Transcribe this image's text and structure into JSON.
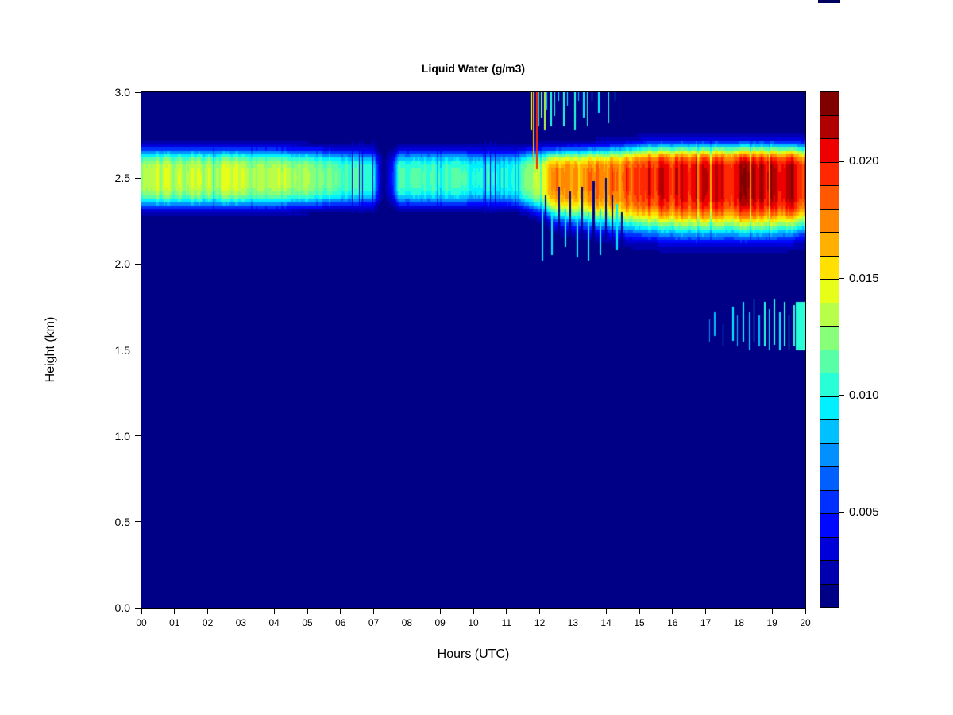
{
  "chart_data": {
    "type": "heatmap",
    "title": "Liquid Water (g/m3)",
    "xlabel": "Hours (UTC)",
    "ylabel": "Height (km)",
    "x_range": [
      0,
      20
    ],
    "y_range": [
      0.0,
      3.0
    ],
    "x_tick_labels": [
      "00",
      "01",
      "02",
      "03",
      "04",
      "05",
      "06",
      "07",
      "08",
      "09",
      "10",
      "11",
      "12",
      "13",
      "14",
      "15",
      "16",
      "17",
      "18",
      "19",
      "20"
    ],
    "y_tick_values": [
      0.0,
      0.5,
      1.0,
      1.5,
      2.0,
      2.5,
      3.0
    ],
    "y_tick_labels": [
      "0.0",
      "0.5",
      "1.0",
      "1.5",
      "2.0",
      "2.5",
      "3.0"
    ],
    "grid": false,
    "legend_position": "right",
    "background_value": 0.0015,
    "colorbar": {
      "min": 0.001,
      "max": 0.023,
      "step": 0.001,
      "tick_values": [
        0.005,
        0.01,
        0.015,
        0.02
      ],
      "tick_labels": [
        "0.005",
        "0.010",
        "0.015",
        "0.020"
      ],
      "colors": [
        "#000087",
        "#0000AE",
        "#0000D8",
        "#0008FF",
        "#0030FF",
        "#0060FF",
        "#0090FF",
        "#00C0FF",
        "#00F0FF",
        "#28FFD7",
        "#58FFA7",
        "#87FF78",
        "#B7FF48",
        "#E7FF18",
        "#FFE000",
        "#FFB000",
        "#FF8800",
        "#FF5800",
        "#FF2800",
        "#EE0000",
        "#B00000",
        "#800000"
      ]
    },
    "band": {
      "center_km": 2.5,
      "profile": [
        {
          "h": 0.0,
          "peak": 0.0138,
          "wu": 0.165,
          "wd": 0.165
        },
        {
          "h": 2.0,
          "peak": 0.0133,
          "wu": 0.165,
          "wd": 0.165
        },
        {
          "h": 3.0,
          "peak": 0.0136,
          "wu": 0.165,
          "wd": 0.165
        },
        {
          "h": 4.5,
          "peak": 0.013,
          "wu": 0.16,
          "wd": 0.16
        },
        {
          "h": 5.5,
          "peak": 0.012,
          "wu": 0.155,
          "wd": 0.155
        },
        {
          "h": 6.5,
          "peak": 0.0112,
          "wu": 0.15,
          "wd": 0.15
        },
        {
          "h": 7.0,
          "peak": 0.0105,
          "wu": 0.15,
          "wd": 0.15
        },
        {
          "h": 7.15,
          "peak": 0.0045,
          "wu": 0.14,
          "wd": 0.14
        },
        {
          "h": 7.3,
          "peak": 0.0016,
          "wu": 0.13,
          "wd": 0.13
        },
        {
          "h": 7.55,
          "peak": 0.0045,
          "wu": 0.14,
          "wd": 0.14
        },
        {
          "h": 7.75,
          "peak": 0.0108,
          "wu": 0.15,
          "wd": 0.15
        },
        {
          "h": 9.0,
          "peak": 0.0112,
          "wu": 0.155,
          "wd": 0.155
        },
        {
          "h": 10.2,
          "peak": 0.0103,
          "wu": 0.15,
          "wd": 0.15
        },
        {
          "h": 11.0,
          "peak": 0.01,
          "wu": 0.15,
          "wd": 0.15
        },
        {
          "h": 11.6,
          "peak": 0.0115,
          "wu": 0.155,
          "wd": 0.17
        },
        {
          "h": 12.1,
          "peak": 0.015,
          "wu": 0.16,
          "wd": 0.2
        },
        {
          "h": 12.5,
          "peak": 0.0168,
          "wu": 0.16,
          "wd": 0.24
        },
        {
          "h": 13.2,
          "peak": 0.017,
          "wu": 0.165,
          "wd": 0.26
        },
        {
          "h": 14.0,
          "peak": 0.0178,
          "wu": 0.17,
          "wd": 0.28
        },
        {
          "h": 14.8,
          "peak": 0.0188,
          "wu": 0.18,
          "wd": 0.3
        },
        {
          "h": 15.5,
          "peak": 0.0198,
          "wu": 0.19,
          "wd": 0.31
        },
        {
          "h": 16.2,
          "peak": 0.0206,
          "wu": 0.19,
          "wd": 0.32
        },
        {
          "h": 17.0,
          "peak": 0.0209,
          "wu": 0.19,
          "wd": 0.32
        },
        {
          "h": 18.0,
          "peak": 0.0211,
          "wu": 0.19,
          "wd": 0.32
        },
        {
          "h": 19.0,
          "peak": 0.0209,
          "wu": 0.19,
          "wd": 0.32
        },
        {
          "h": 20.0,
          "peak": 0.0206,
          "wu": 0.185,
          "wd": 0.3
        }
      ]
    },
    "upper_streaks": [
      {
        "h": 11.72,
        "v": 0.014,
        "kb": 2.78,
        "w": 2
      },
      {
        "h": 11.8,
        "v": 0.016,
        "kb": 2.6,
        "w": 2
      },
      {
        "h": 11.88,
        "v": 0.019,
        "kb": 2.55,
        "w": 2
      },
      {
        "h": 11.97,
        "v": 0.01,
        "kb": 2.8,
        "w": 1
      },
      {
        "h": 12.04,
        "v": 0.012,
        "kb": 2.85,
        "w": 2
      },
      {
        "h": 12.12,
        "v": 0.013,
        "kb": 2.78,
        "w": 2
      },
      {
        "h": 12.2,
        "v": 0.009,
        "kb": 2.9,
        "w": 1
      },
      {
        "h": 12.31,
        "v": 0.011,
        "kb": 2.8,
        "w": 2
      },
      {
        "h": 12.45,
        "v": 0.01,
        "kb": 2.86,
        "w": 1
      },
      {
        "h": 12.56,
        "v": 0.009,
        "kb": 2.95,
        "w": 1
      },
      {
        "h": 12.7,
        "v": 0.01,
        "kb": 2.8,
        "w": 2
      },
      {
        "h": 12.83,
        "v": 0.009,
        "kb": 2.92,
        "w": 1
      },
      {
        "h": 13.05,
        "v": 0.01,
        "kb": 2.78,
        "w": 2
      },
      {
        "h": 13.16,
        "v": 0.008,
        "kb": 2.95,
        "w": 1
      },
      {
        "h": 13.3,
        "v": 0.009,
        "kb": 2.85,
        "w": 2
      },
      {
        "h": 13.43,
        "v": 0.01,
        "kb": 2.8,
        "w": 1
      },
      {
        "h": 13.56,
        "v": 0.008,
        "kb": 2.95,
        "w": 1
      },
      {
        "h": 13.76,
        "v": 0.009,
        "kb": 2.88,
        "w": 2
      },
      {
        "h": 14.06,
        "v": 0.01,
        "kb": 2.82,
        "w": 1
      },
      {
        "h": 14.26,
        "v": 0.008,
        "kb": 2.95,
        "w": 1
      }
    ],
    "lower_streaks": [
      {
        "h": 12.05,
        "v": 0.009,
        "kt": 2.35,
        "kb": 2.02,
        "w": 2
      },
      {
        "h": 12.16,
        "v": 0.0015,
        "kt": 2.4,
        "kb": 2.1,
        "w": 2
      },
      {
        "h": 12.35,
        "v": 0.009,
        "kt": 2.3,
        "kb": 2.05,
        "w": 2
      },
      {
        "h": 12.55,
        "v": 0.0015,
        "kt": 2.45,
        "kb": 2.08,
        "w": 2
      },
      {
        "h": 12.75,
        "v": 0.009,
        "kt": 2.32,
        "kb": 2.1,
        "w": 2
      },
      {
        "h": 12.9,
        "v": 0.0015,
        "kt": 2.42,
        "kb": 2.06,
        "w": 2
      },
      {
        "h": 13.1,
        "v": 0.009,
        "kt": 2.28,
        "kb": 2.04,
        "w": 2
      },
      {
        "h": 13.25,
        "v": 0.0015,
        "kt": 2.45,
        "kb": 2.1,
        "w": 2
      },
      {
        "h": 13.45,
        "v": 0.009,
        "kt": 2.3,
        "kb": 2.02,
        "w": 2
      },
      {
        "h": 13.6,
        "v": 0.0015,
        "kt": 2.48,
        "kb": 2.12,
        "w": 3
      },
      {
        "h": 13.8,
        "v": 0.009,
        "kt": 2.32,
        "kb": 2.05,
        "w": 2
      },
      {
        "h": 13.96,
        "v": 0.0015,
        "kt": 2.5,
        "kb": 2.15,
        "w": 2
      },
      {
        "h": 14.16,
        "v": 0.0015,
        "kt": 2.4,
        "kb": 2.05,
        "w": 2
      },
      {
        "h": 14.3,
        "v": 0.009,
        "kt": 2.35,
        "kb": 2.08,
        "w": 2
      },
      {
        "h": 14.46,
        "v": 0.0015,
        "kt": 2.3,
        "kb": 2.02,
        "w": 2
      }
    ],
    "band_hairlines": [
      {
        "h": 6.35,
        "v": 0.003
      },
      {
        "h": 6.55,
        "v": 0.003
      },
      {
        "h": 6.65,
        "v": 0.003
      },
      {
        "h": 6.95,
        "v": 0.003
      },
      {
        "h": 7.05,
        "v": 0.003
      },
      {
        "h": 10.35,
        "v": 0.003
      },
      {
        "h": 10.5,
        "v": 0.003
      },
      {
        "h": 10.65,
        "v": 0.003
      },
      {
        "h": 10.8,
        "v": 0.003
      },
      {
        "h": 10.9,
        "v": 0.003
      }
    ],
    "low_level_streaks": [
      {
        "h": 17.1,
        "v": 0.007,
        "kt": 1.68,
        "kb": 1.55,
        "w": 1
      },
      {
        "h": 17.25,
        "v": 0.008,
        "kt": 1.72,
        "kb": 1.58,
        "w": 2
      },
      {
        "h": 17.5,
        "v": 0.007,
        "kt": 1.65,
        "kb": 1.52,
        "w": 1
      },
      {
        "h": 17.8,
        "v": 0.009,
        "kt": 1.75,
        "kb": 1.55,
        "w": 2
      },
      {
        "h": 17.95,
        "v": 0.008,
        "kt": 1.7,
        "kb": 1.52,
        "w": 1
      },
      {
        "h": 18.1,
        "v": 0.009,
        "kt": 1.78,
        "kb": 1.55,
        "w": 2
      },
      {
        "h": 18.3,
        "v": 0.008,
        "kt": 1.72,
        "kb": 1.5,
        "w": 2
      },
      {
        "h": 18.45,
        "v": 0.009,
        "kt": 1.8,
        "kb": 1.55,
        "w": 1
      },
      {
        "h": 18.6,
        "v": 0.008,
        "kt": 1.7,
        "kb": 1.52,
        "w": 2
      },
      {
        "h": 18.75,
        "v": 0.01,
        "kt": 1.78,
        "kb": 1.52,
        "w": 2
      },
      {
        "h": 18.9,
        "v": 0.009,
        "kt": 1.74,
        "kb": 1.5,
        "w": 1
      },
      {
        "h": 19.05,
        "v": 0.01,
        "kt": 1.8,
        "kb": 1.53,
        "w": 2
      },
      {
        "h": 19.2,
        "v": 0.009,
        "kt": 1.72,
        "kb": 1.5,
        "w": 2
      },
      {
        "h": 19.35,
        "v": 0.01,
        "kt": 1.78,
        "kb": 1.52,
        "w": 2
      },
      {
        "h": 19.5,
        "v": 0.009,
        "kt": 1.7,
        "kb": 1.5,
        "w": 1
      },
      {
        "h": 19.65,
        "v": 0.01,
        "kt": 1.76,
        "kb": 1.52,
        "w": 2
      }
    ],
    "low_level_patch": {
      "h0": 19.72,
      "h1": 20.0,
      "v": 0.01,
      "kt": 1.78,
      "kb": 1.5
    },
    "noise": {
      "amplitude": 0.11,
      "dip_probability": 0.05,
      "dip_factor": 0.8,
      "seed": 7
    }
  }
}
